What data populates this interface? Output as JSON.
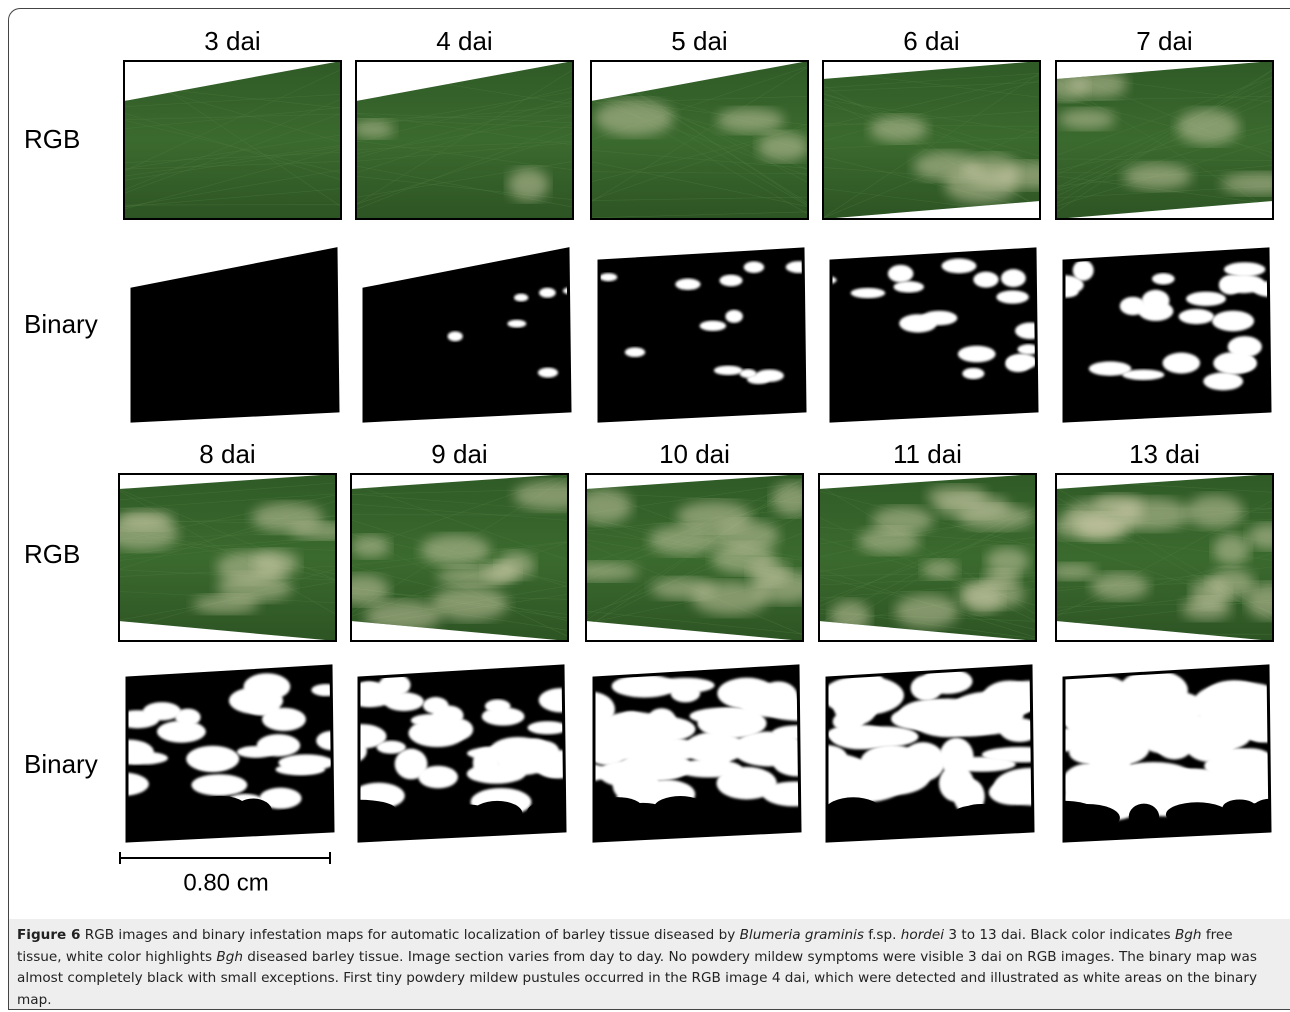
{
  "figure": {
    "top_titles": [
      "3 dai",
      "4 dai",
      "5 dai",
      "6 dai",
      "7 dai"
    ],
    "bottom_titles": [
      "8 dai",
      "9 dai",
      "10 dai",
      "11 dai",
      "13 dai"
    ],
    "row_labels": [
      "RGB",
      "Binary"
    ],
    "scale_bar": "0.80 cm"
  },
  "caption": {
    "label": "Figure 6",
    "text": [
      " RGB images and binary infestation maps for automatic localization of barley tissue diseased by ",
      "Blumeria graminis",
      " f.sp. ",
      "hordei",
      " 3 to 13 dai. Black color indicates ",
      "Bgh",
      " free tissue, white color highlights ",
      "Bgh",
      " diseased barley tissue. Image section varies from day to day. No powdery mildew symptoms were visible 3 dai on RGB images. The binary map was almost completely black with small exceptions. First tiny powdery mildew pustules occurred in the RGB image 4 dai, which were detected and illustrated as white areas on the binary map."
    ]
  }
}
